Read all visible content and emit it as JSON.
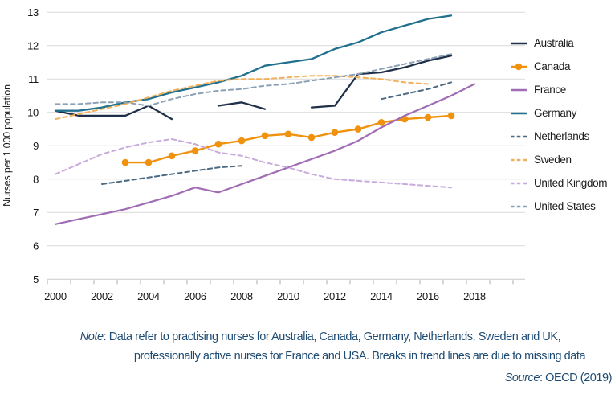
{
  "figure": {
    "note": {
      "label": "Note",
      "line1_rest": ": Data refer to practising nurses for Australia, Canada, Germany, Netherlands, Sweden and UK,",
      "line2": "professionally active nurses for France and USA. Breaks in trend lines are due to missing data"
    },
    "source": {
      "label": "Source",
      "rest": ": OECD (2019)"
    }
  },
  "palette": {
    "gridline": "#d9d9d9",
    "axis_line": "#c9c9c9",
    "tick": "#ababab",
    "axis_text": "#161616",
    "note_text": "#1E4B73"
  },
  "chart_data": {
    "type": "line",
    "title": "",
    "xlabel": "",
    "ylabel": "Nurses per 1 000 population",
    "ylim": [
      5,
      13
    ],
    "y_ticks": [
      5,
      6,
      7,
      8,
      9,
      10,
      11,
      12,
      13
    ],
    "x": [
      2000,
      2001,
      2002,
      2003,
      2004,
      2005,
      2006,
      2007,
      2008,
      2009,
      2010,
      2011,
      2012,
      2013,
      2014,
      2015,
      2016,
      2017,
      2018
    ],
    "x_labeled_ticks": [
      2000,
      2002,
      2004,
      2006,
      2008,
      2010,
      2012,
      2014,
      2016,
      2018
    ],
    "grid": "horizontal",
    "legend_position": "right",
    "note_on_breaks": "Breaks in trend lines are due to missing data",
    "series": [
      {
        "name": "Australia",
        "color": "#1F3048",
        "style": "solid",
        "marker": false,
        "width": 2.3,
        "values": [
          10.05,
          9.9,
          9.9,
          9.9,
          10.2,
          9.8,
          null,
          10.2,
          10.3,
          10.1,
          null,
          10.15,
          10.2,
          11.15,
          11.2,
          11.35,
          11.55,
          11.7,
          null
        ]
      },
      {
        "name": "Canada",
        "color": "#F0920E",
        "style": "solid",
        "marker": true,
        "width": 2.4,
        "values": [
          null,
          null,
          null,
          8.5,
          8.5,
          8.7,
          8.85,
          9.05,
          9.15,
          9.3,
          9.35,
          9.25,
          9.4,
          9.5,
          9.7,
          9.8,
          9.85,
          9.9,
          null
        ]
      },
      {
        "name": "France",
        "color": "#A06CB4",
        "style": "solid",
        "marker": false,
        "width": 2.2,
        "values": [
          6.65,
          6.8,
          6.95,
          7.1,
          7.3,
          7.5,
          7.75,
          7.6,
          7.85,
          8.1,
          8.35,
          8.6,
          8.85,
          9.15,
          9.55,
          9.9,
          10.2,
          10.5,
          10.85
        ]
      },
      {
        "name": "Germany",
        "color": "#21708D",
        "style": "solid",
        "marker": false,
        "width": 2.3,
        "values": [
          10.05,
          10.05,
          10.15,
          10.3,
          10.4,
          10.6,
          10.75,
          10.9,
          11.1,
          11.4,
          11.5,
          11.6,
          11.9,
          12.1,
          12.4,
          12.6,
          12.8,
          12.9,
          null
        ]
      },
      {
        "name": "Netherlands",
        "color": "#4C6A82",
        "style": "dashed",
        "marker": false,
        "width": 2,
        "values": [
          null,
          null,
          7.85,
          7.95,
          8.05,
          8.15,
          8.25,
          8.35,
          8.4,
          null,
          null,
          null,
          null,
          null,
          10.4,
          10.55,
          10.7,
          10.9,
          null
        ]
      },
      {
        "name": "Sweden",
        "color": "#F3B05A",
        "style": "dashed",
        "marker": false,
        "width": 2,
        "values": [
          9.8,
          9.95,
          10.1,
          10.25,
          10.45,
          10.65,
          10.8,
          10.95,
          11.0,
          11.0,
          11.05,
          11.1,
          11.1,
          11.05,
          11.0,
          10.9,
          10.85,
          null,
          null
        ]
      },
      {
        "name": "United Kingdom",
        "color": "#C8AADC",
        "style": "dashed",
        "marker": false,
        "width": 2,
        "values": [
          8.15,
          8.45,
          8.75,
          8.95,
          9.1,
          9.2,
          9.05,
          8.8,
          8.7,
          8.5,
          8.35,
          8.15,
          8.0,
          7.95,
          7.9,
          7.85,
          7.8,
          7.75,
          null
        ]
      },
      {
        "name": "United States",
        "color": "#8CA1B5",
        "style": "dashed",
        "marker": false,
        "width": 2,
        "values": [
          10.25,
          10.25,
          10.3,
          10.3,
          10.2,
          10.4,
          10.55,
          10.65,
          10.7,
          10.8,
          10.85,
          10.95,
          11.05,
          11.15,
          11.3,
          11.45,
          11.6,
          11.75,
          null
        ]
      }
    ]
  }
}
